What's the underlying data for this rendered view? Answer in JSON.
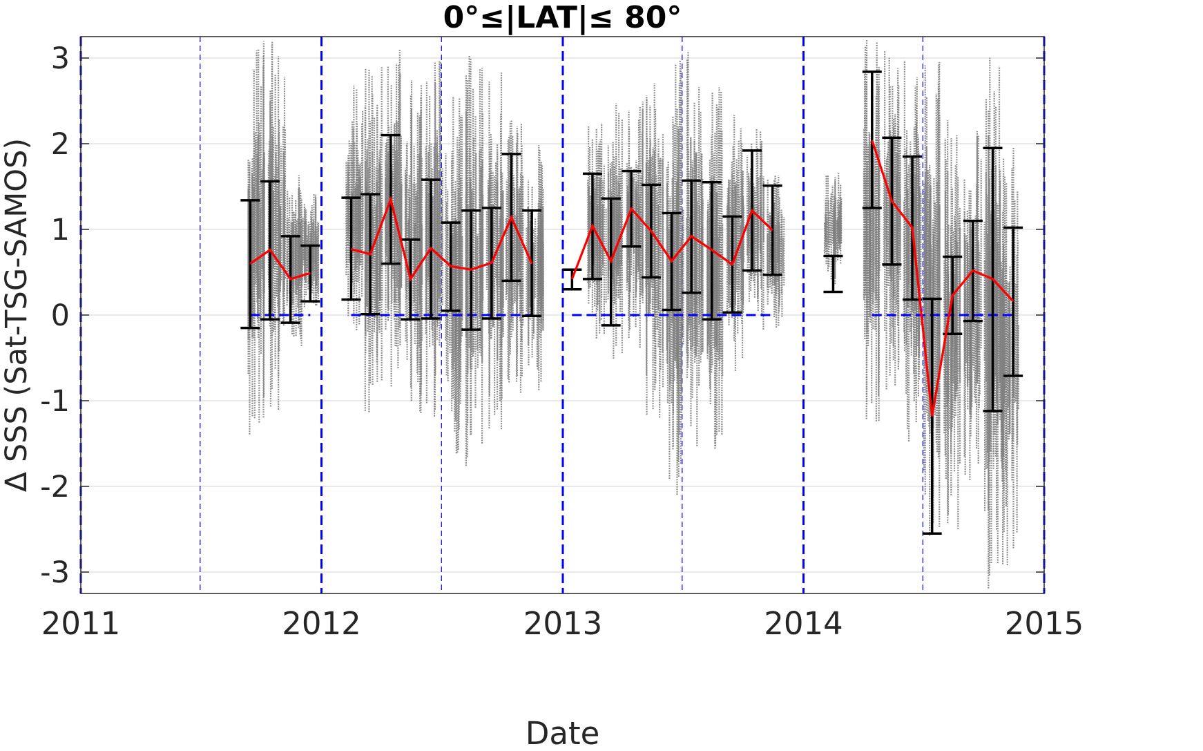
{
  "chart_data": {
    "type": "scatter",
    "title": "0°≤|LAT|≤ 80°",
    "xlabel": "Date",
    "ylabel": "Δ SSS (Sat-TSG-SAMOS)",
    "xlim": [
      "2011-01-01",
      "2015-01-01"
    ],
    "ylim": [
      -3.25,
      3.25
    ],
    "x_ticks": [
      "2011",
      "2012",
      "2013",
      "2014",
      "2015"
    ],
    "y_ticks": [
      -3,
      -2,
      -1,
      0,
      1,
      2,
      3
    ],
    "grid": "horizontal",
    "colors": {
      "scatter": "#808080",
      "mean_line": "#ff0000",
      "error_bars": "#000000",
      "reference_lines": "#0000ff",
      "grid": "#dcdcdc"
    },
    "year_boundaries": [
      "2011-01-01",
      "2012-01-01",
      "2013-01-01",
      "2014-01-01",
      "2015-01-01"
    ],
    "half_year_lines": [
      "2011-07-01",
      "2012-07-01",
      "2013-07-01",
      "2014-07-01"
    ],
    "zero_line_segments": [
      [
        "2011-09-15",
        "2011-12-15"
      ],
      [
        "2012-02-15",
        "2012-11-15"
      ],
      [
        "2013-01-15",
        "2013-11-15"
      ],
      [
        "2014-04-15",
        "2014-11-15"
      ]
    ],
    "scatter_clusters": [
      {
        "x": "2011-09-25",
        "lo": -1.4,
        "hi": 3.25
      },
      {
        "x": "2011-10-25",
        "lo": -1.2,
        "hi": 3.2
      },
      {
        "x": "2011-11-20",
        "lo": -0.4,
        "hi": 1.7
      },
      {
        "x": "2011-12-15",
        "lo": 0.0,
        "hi": 1.5
      },
      {
        "x": "2012-02-20",
        "lo": -0.3,
        "hi": 2.7
      },
      {
        "x": "2012-03-20",
        "lo": -1.2,
        "hi": 3.0
      },
      {
        "x": "2012-04-20",
        "lo": -0.9,
        "hi": 3.25
      },
      {
        "x": "2012-05-20",
        "lo": -1.4,
        "hi": 3.0
      },
      {
        "x": "2012-06-20",
        "lo": -1.2,
        "hi": 3.0
      },
      {
        "x": "2012-07-20",
        "lo": -1.9,
        "hi": 2.7
      },
      {
        "x": "2012-08-20",
        "lo": -1.8,
        "hi": 3.1
      },
      {
        "x": "2012-09-20",
        "lo": -1.4,
        "hi": 2.9
      },
      {
        "x": "2012-10-20",
        "lo": -1.0,
        "hi": 2.5
      },
      {
        "x": "2012-11-20",
        "lo": -0.9,
        "hi": 2.0
      },
      {
        "x": "2013-02-20",
        "lo": -0.3,
        "hi": 2.3
      },
      {
        "x": "2013-03-20",
        "lo": -0.6,
        "hi": 2.5
      },
      {
        "x": "2013-04-20",
        "lo": -0.5,
        "hi": 2.5
      },
      {
        "x": "2013-05-20",
        "lo": -1.4,
        "hi": 3.1
      },
      {
        "x": "2013-06-20",
        "lo": -2.2,
        "hi": 3.0
      },
      {
        "x": "2013-07-20",
        "lo": -1.6,
        "hi": 3.1
      },
      {
        "x": "2013-08-20",
        "lo": -1.7,
        "hi": 2.7
      },
      {
        "x": "2013-09-20",
        "lo": -0.7,
        "hi": 2.4
      },
      {
        "x": "2013-10-20",
        "lo": -0.2,
        "hi": 2.2
      },
      {
        "x": "2013-11-20",
        "lo": -0.2,
        "hi": 1.7
      },
      {
        "x": "2014-02-15",
        "lo": 0.3,
        "hi": 1.7
      },
      {
        "x": "2014-04-15",
        "lo": -1.4,
        "hi": 3.25
      },
      {
        "x": "2014-05-15",
        "lo": -0.9,
        "hi": 3.25
      },
      {
        "x": "2014-06-15",
        "lo": -1.5,
        "hi": 3.0
      },
      {
        "x": "2014-07-15",
        "lo": -2.7,
        "hi": 3.0
      },
      {
        "x": "2014-08-15",
        "lo": -2.5,
        "hi": 2.3
      },
      {
        "x": "2014-09-15",
        "lo": -2.1,
        "hi": 2.2
      },
      {
        "x": "2014-10-15",
        "lo": -3.25,
        "hi": 3.2
      },
      {
        "x": "2014-11-10",
        "lo": -3.0,
        "hi": 2.0
      }
    ],
    "series": [
      {
        "name": "",
        "type": "errorbar",
        "points": [
          {
            "x": "2011-09-15",
            "mean": 0.6,
            "lo": -0.15,
            "hi": 1.34
          },
          {
            "x": "2011-10-15",
            "mean": 0.76,
            "lo": -0.05,
            "hi": 1.56
          },
          {
            "x": "2011-11-15",
            "mean": 0.42,
            "lo": -0.09,
            "hi": 0.92
          },
          {
            "x": "2011-12-15",
            "mean": 0.49,
            "lo": 0.16,
            "hi": 0.81
          },
          {
            "x": "2012-02-15",
            "mean": 0.77,
            "lo": 0.18,
            "hi": 1.37
          },
          {
            "x": "2012-03-15",
            "mean": 0.71,
            "lo": 0.01,
            "hi": 1.41
          },
          {
            "x": "2012-04-15",
            "mean": 1.35,
            "lo": 0.6,
            "hi": 2.1
          },
          {
            "x": "2012-05-15",
            "mean": 0.42,
            "lo": -0.05,
            "hi": 0.88
          },
          {
            "x": "2012-06-15",
            "mean": 0.78,
            "lo": -0.04,
            "hi": 1.58
          },
          {
            "x": "2012-07-15",
            "mean": 0.57,
            "lo": 0.05,
            "hi": 1.08
          },
          {
            "x": "2012-08-15",
            "mean": 0.53,
            "lo": -0.17,
            "hi": 1.22
          },
          {
            "x": "2012-09-15",
            "mean": 0.61,
            "lo": -0.04,
            "hi": 1.25
          },
          {
            "x": "2012-10-15",
            "mean": 1.14,
            "lo": 0.4,
            "hi": 1.88
          },
          {
            "x": "2012-11-15",
            "mean": 0.6,
            "lo": -0.01,
            "hi": 1.22
          },
          {
            "x": "2013-01-15",
            "mean": 0.42,
            "lo": 0.3,
            "hi": 0.53
          },
          {
            "x": "2013-02-15",
            "mean": 1.04,
            "lo": 0.42,
            "hi": 1.65
          },
          {
            "x": "2013-03-15",
            "mean": 0.63,
            "lo": -0.12,
            "hi": 1.36
          },
          {
            "x": "2013-04-15",
            "mean": 1.24,
            "lo": 0.8,
            "hi": 1.68
          },
          {
            "x": "2013-05-15",
            "mean": 0.98,
            "lo": 0.44,
            "hi": 1.52
          },
          {
            "x": "2013-06-15",
            "mean": 0.63,
            "lo": 0.06,
            "hi": 1.19
          },
          {
            "x": "2013-07-15",
            "mean": 0.92,
            "lo": 0.26,
            "hi": 1.57
          },
          {
            "x": "2013-08-15",
            "mean": 0.76,
            "lo": -0.05,
            "hi": 1.55
          },
          {
            "x": "2013-09-15",
            "mean": 0.59,
            "lo": 0.03,
            "hi": 1.15
          },
          {
            "x": "2013-10-15",
            "mean": 1.22,
            "lo": 0.52,
            "hi": 1.92
          },
          {
            "x": "2013-11-15",
            "mean": 0.99,
            "lo": 0.47,
            "hi": 1.51
          },
          {
            "x": "2014-02-15",
            "mean": 0.48,
            "lo": 0.27,
            "hi": 0.69
          },
          {
            "x": "2014-04-15",
            "mean": 2.04,
            "lo": 1.25,
            "hi": 2.84
          },
          {
            "x": "2014-05-15",
            "mean": 1.33,
            "lo": 0.59,
            "hi": 2.07
          },
          {
            "x": "2014-06-15",
            "mean": 1.02,
            "lo": 0.18,
            "hi": 1.85
          },
          {
            "x": "2014-07-15",
            "mean": -1.18,
            "lo": -2.55,
            "hi": 0.19
          },
          {
            "x": "2014-08-15",
            "mean": 0.23,
            "lo": -0.22,
            "hi": 0.68
          },
          {
            "x": "2014-09-15",
            "mean": 0.52,
            "lo": -0.07,
            "hi": 1.1
          },
          {
            "x": "2014-10-15",
            "mean": 0.42,
            "lo": -1.12,
            "hi": 1.95
          },
          {
            "x": "2014-11-15",
            "mean": 0.16,
            "lo": -0.71,
            "hi": 1.02
          }
        ]
      }
    ]
  }
}
